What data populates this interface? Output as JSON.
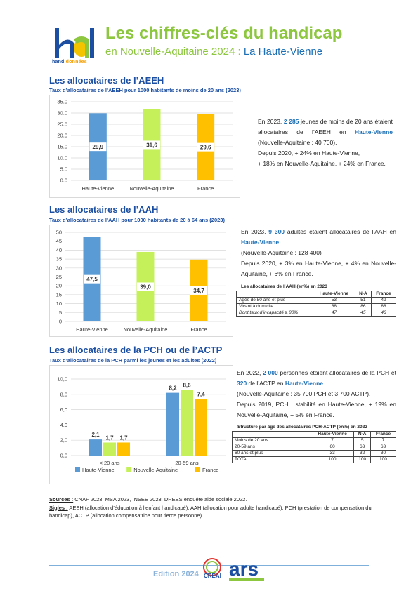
{
  "header": {
    "logo_text_a": "handi",
    "logo_text_b": "données",
    "title": "Les chiffres-clés du handicap",
    "subtitle_region": "en Nouvelle-Aquitaine 2024 : ",
    "subtitle_dept": "La Haute-Vienne"
  },
  "aeeh": {
    "title": "Les allocataires de l’AEEH",
    "subtitle": "Taux d’allocataires de l’AEEH pour 1000 habitants de moins de 20 ans (2023)",
    "paragraph": [
      {
        "t": "En 2023, "
      },
      {
        "t": "2 285",
        "hl": true
      },
      {
        "t": " jeunes de moins de 20 ans étaient allocataires de l’AEEH en "
      },
      {
        "t": "Haute-Vienne",
        "hl": true
      },
      {
        "t": " (Nouvelle-Aquitaine : 40 700)."
      },
      {
        "br": true
      },
      {
        "t": "Depuis 2020, + 24% en Haute-Vienne,"
      },
      {
        "br": true
      },
      {
        "t": "+ 18% en Nouvelle-Aquitaine, + 24% en France."
      }
    ]
  },
  "aah": {
    "title": "Les allocataires de l’AAH",
    "subtitle": "Taux d’allocataires de l’AAH pour 1000 habitants de 20 à 64 ans (2023)",
    "paragraph": [
      {
        "t": "En 2023, "
      },
      {
        "t": "9 300",
        "hl": true
      },
      {
        "t": " adultes étaient allocataires de l’AAH en "
      },
      {
        "t": "Haute-Vienne",
        "hl": true
      },
      {
        "br": true
      },
      {
        "t": "(Nouvelle-Aquitaine : 128 400)"
      },
      {
        "br": true
      },
      {
        "t": "Depuis 2020, + 3% en Haute-Vienne, + 4% en Nouvelle-Aquitaine, + 6% en France."
      }
    ],
    "table_title": "Les allocataires de l’AAH (en%) en 2023",
    "table": {
      "headers": [
        "",
        "Haute-Vienne",
        "N-A",
        "France"
      ],
      "rows": [
        [
          "Agés de 50 ans et plus",
          "53",
          "51",
          "49"
        ],
        [
          "Vivant à domicile",
          "88",
          "86",
          "88"
        ],
        [
          "Dont taux d’incapacité ≥ 80%",
          "47",
          "45",
          "46"
        ]
      ]
    }
  },
  "pch": {
    "title": "Les allocataires de la PCH ou de l’ACTP",
    "subtitle": "Taux d’allocataires de la PCH parmi les jeunes et les adultes (2022)",
    "paragraph": [
      {
        "t": "En 2022, "
      },
      {
        "t": "2 000",
        "hl": true
      },
      {
        "t": " personnes étaient allocataires de la PCH et "
      },
      {
        "t": "320",
        "hl": true
      },
      {
        "t": " de l’ACTP en "
      },
      {
        "t": "Haute-Vienne",
        "hl": true
      },
      {
        "t": "."
      },
      {
        "br": true
      },
      {
        "t": "(Nouvelle-Aquitaine : 35 700 PCH et 3 700 ACTP)."
      },
      {
        "br": true
      },
      {
        "t": "Depuis 2019, PCH : stabilité en Haute-Vienne, + 19% en Nouvelle-Aquitaine, + 5% en France."
      }
    ],
    "table_title": "Structure par âge des allocataires PCH-ACTP (en%) en 2022",
    "table": {
      "headers": [
        "",
        "Haute-Vienne",
        "N-A",
        "France"
      ],
      "rows": [
        [
          "Moins de 20 ans",
          "7",
          "5",
          "7"
        ],
        [
          "20-59 ans",
          "60",
          "63",
          "63"
        ],
        [
          "60 ans et plus",
          "33",
          "32",
          "30"
        ],
        [
          "TOTAL",
          "100",
          "100",
          "100"
        ]
      ]
    }
  },
  "sources": {
    "sources_label": "Sources :",
    "sources_text": " CNAF 2023, MSA 2023, INSEE 2023, DREES enquête aide sociale 2022.",
    "sigles_label": "Sigles :",
    "sigles_text": " AEEH (allocation d’éducation à l’enfant handicapé), AAH (allocation pour adulte handicapé), PCH (prestation de compensation du handicap), ACTP (allocation compensatrice pour tierce personne)."
  },
  "footer": {
    "edition": "Edition 2024",
    "partner_a": "CREAI",
    "partner_b": "ars"
  },
  "colors": {
    "haute_vienne": "#5b9bd5",
    "nouvelle_aquitaine": "#c5f05a",
    "france": "#ffc000",
    "title_green": "#8dc63f",
    "title_blue": "#1c4fa1"
  },
  "chart_data": [
    {
      "type": "bar",
      "categories": [
        "Haute-Vienne",
        "Nouvelle-Aquitaine",
        "France"
      ],
      "values": [
        29.9,
        31.6,
        29.6
      ],
      "value_labels": [
        "29,9",
        "31,6",
        "29,6"
      ],
      "ylim": [
        0,
        35
      ],
      "yticks": [
        "0.0",
        "5.0",
        "10.0",
        "15.0",
        "20.0",
        "25.0",
        "30.0",
        "35.0"
      ],
      "grid": true
    },
    {
      "type": "bar",
      "categories": [
        "Haute-Vienne",
        "Nouvelle-Aquitaine",
        "France"
      ],
      "values": [
        47.5,
        39.0,
        34.7
      ],
      "value_labels": [
        "47,5",
        "39,0",
        "34,7"
      ],
      "ylim": [
        0,
        50
      ],
      "yticks": [
        "0",
        "5",
        "10",
        "15",
        "20",
        "25",
        "30",
        "35",
        "40",
        "45",
        "50"
      ],
      "grid": true
    },
    {
      "type": "bar",
      "categories": [
        "< 20 ans",
        "20-59 ans"
      ],
      "series": [
        {
          "name": "Haute-Vienne",
          "values": [
            2.1,
            8.2
          ],
          "labels": [
            "2,1",
            "8,2"
          ]
        },
        {
          "name": "Nouvelle-Aquitaine",
          "values": [
            1.7,
            8.6
          ],
          "labels": [
            "1,7",
            "8,6"
          ]
        },
        {
          "name": "France",
          "values": [
            1.7,
            7.4
          ],
          "labels": [
            "1,7",
            "7,4"
          ]
        }
      ],
      "ylim": [
        0,
        10
      ],
      "yticks": [
        "0,0",
        "2,0",
        "4,0",
        "6,0",
        "8,0",
        "10,0"
      ],
      "grid": true,
      "legend": "bottom"
    }
  ]
}
